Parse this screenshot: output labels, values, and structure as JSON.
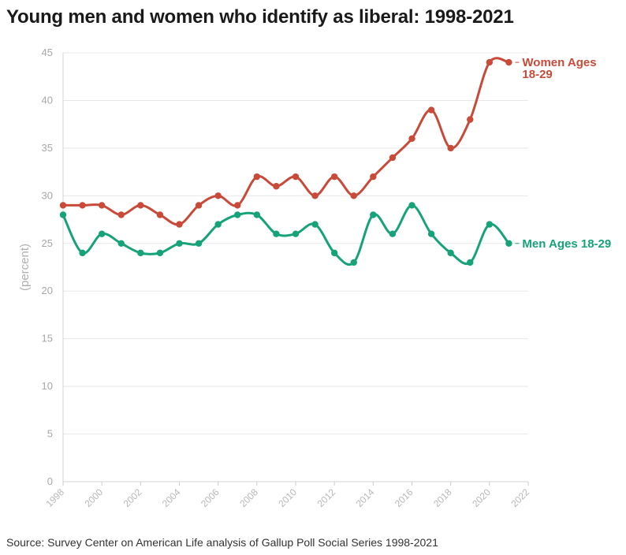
{
  "title": "Young men and women who identify as liberal: 1998-2021",
  "source": "Source: Survey Center on American Life analysis of Gallup Poll Social Series 1998-2021",
  "chart_data": {
    "type": "line",
    "title": "Young men and women who identify as liberal: 1998-2021",
    "xlabel": "",
    "ylabel": "(percent)",
    "xlim": [
      1998,
      2022
    ],
    "ylim": [
      0,
      45
    ],
    "x_ticks": [
      1998,
      2000,
      2002,
      2004,
      2006,
      2008,
      2010,
      2012,
      2014,
      2016,
      2018,
      2020,
      2022
    ],
    "y_ticks": [
      0,
      5,
      10,
      15,
      20,
      25,
      30,
      35,
      40,
      45
    ],
    "grid": true,
    "legend": "direct labels at right end of lines",
    "x": [
      1998,
      1999,
      2000,
      2001,
      2002,
      2003,
      2004,
      2005,
      2006,
      2007,
      2008,
      2009,
      2010,
      2011,
      2012,
      2013,
      2014,
      2015,
      2016,
      2017,
      2018,
      2019,
      2020,
      2021
    ],
    "series": [
      {
        "name": "Women Ages 18-29",
        "label_lines": [
          "Women Ages",
          "18-29"
        ],
        "color": "#c94a38",
        "values": [
          29,
          29,
          29,
          28,
          29,
          28,
          27,
          29,
          30,
          29,
          32,
          31,
          32,
          30,
          32,
          30,
          32,
          34,
          36,
          39,
          35,
          38,
          44,
          44
        ]
      },
      {
        "name": "Men Ages 18-29",
        "label_lines": [
          "Men Ages 18-29"
        ],
        "color": "#16a37a",
        "values": [
          28,
          24,
          26,
          25,
          24,
          24,
          25,
          25,
          27,
          28,
          28,
          26,
          26,
          27,
          24,
          23,
          28,
          26,
          29,
          26,
          24,
          23,
          27,
          25
        ]
      }
    ]
  }
}
